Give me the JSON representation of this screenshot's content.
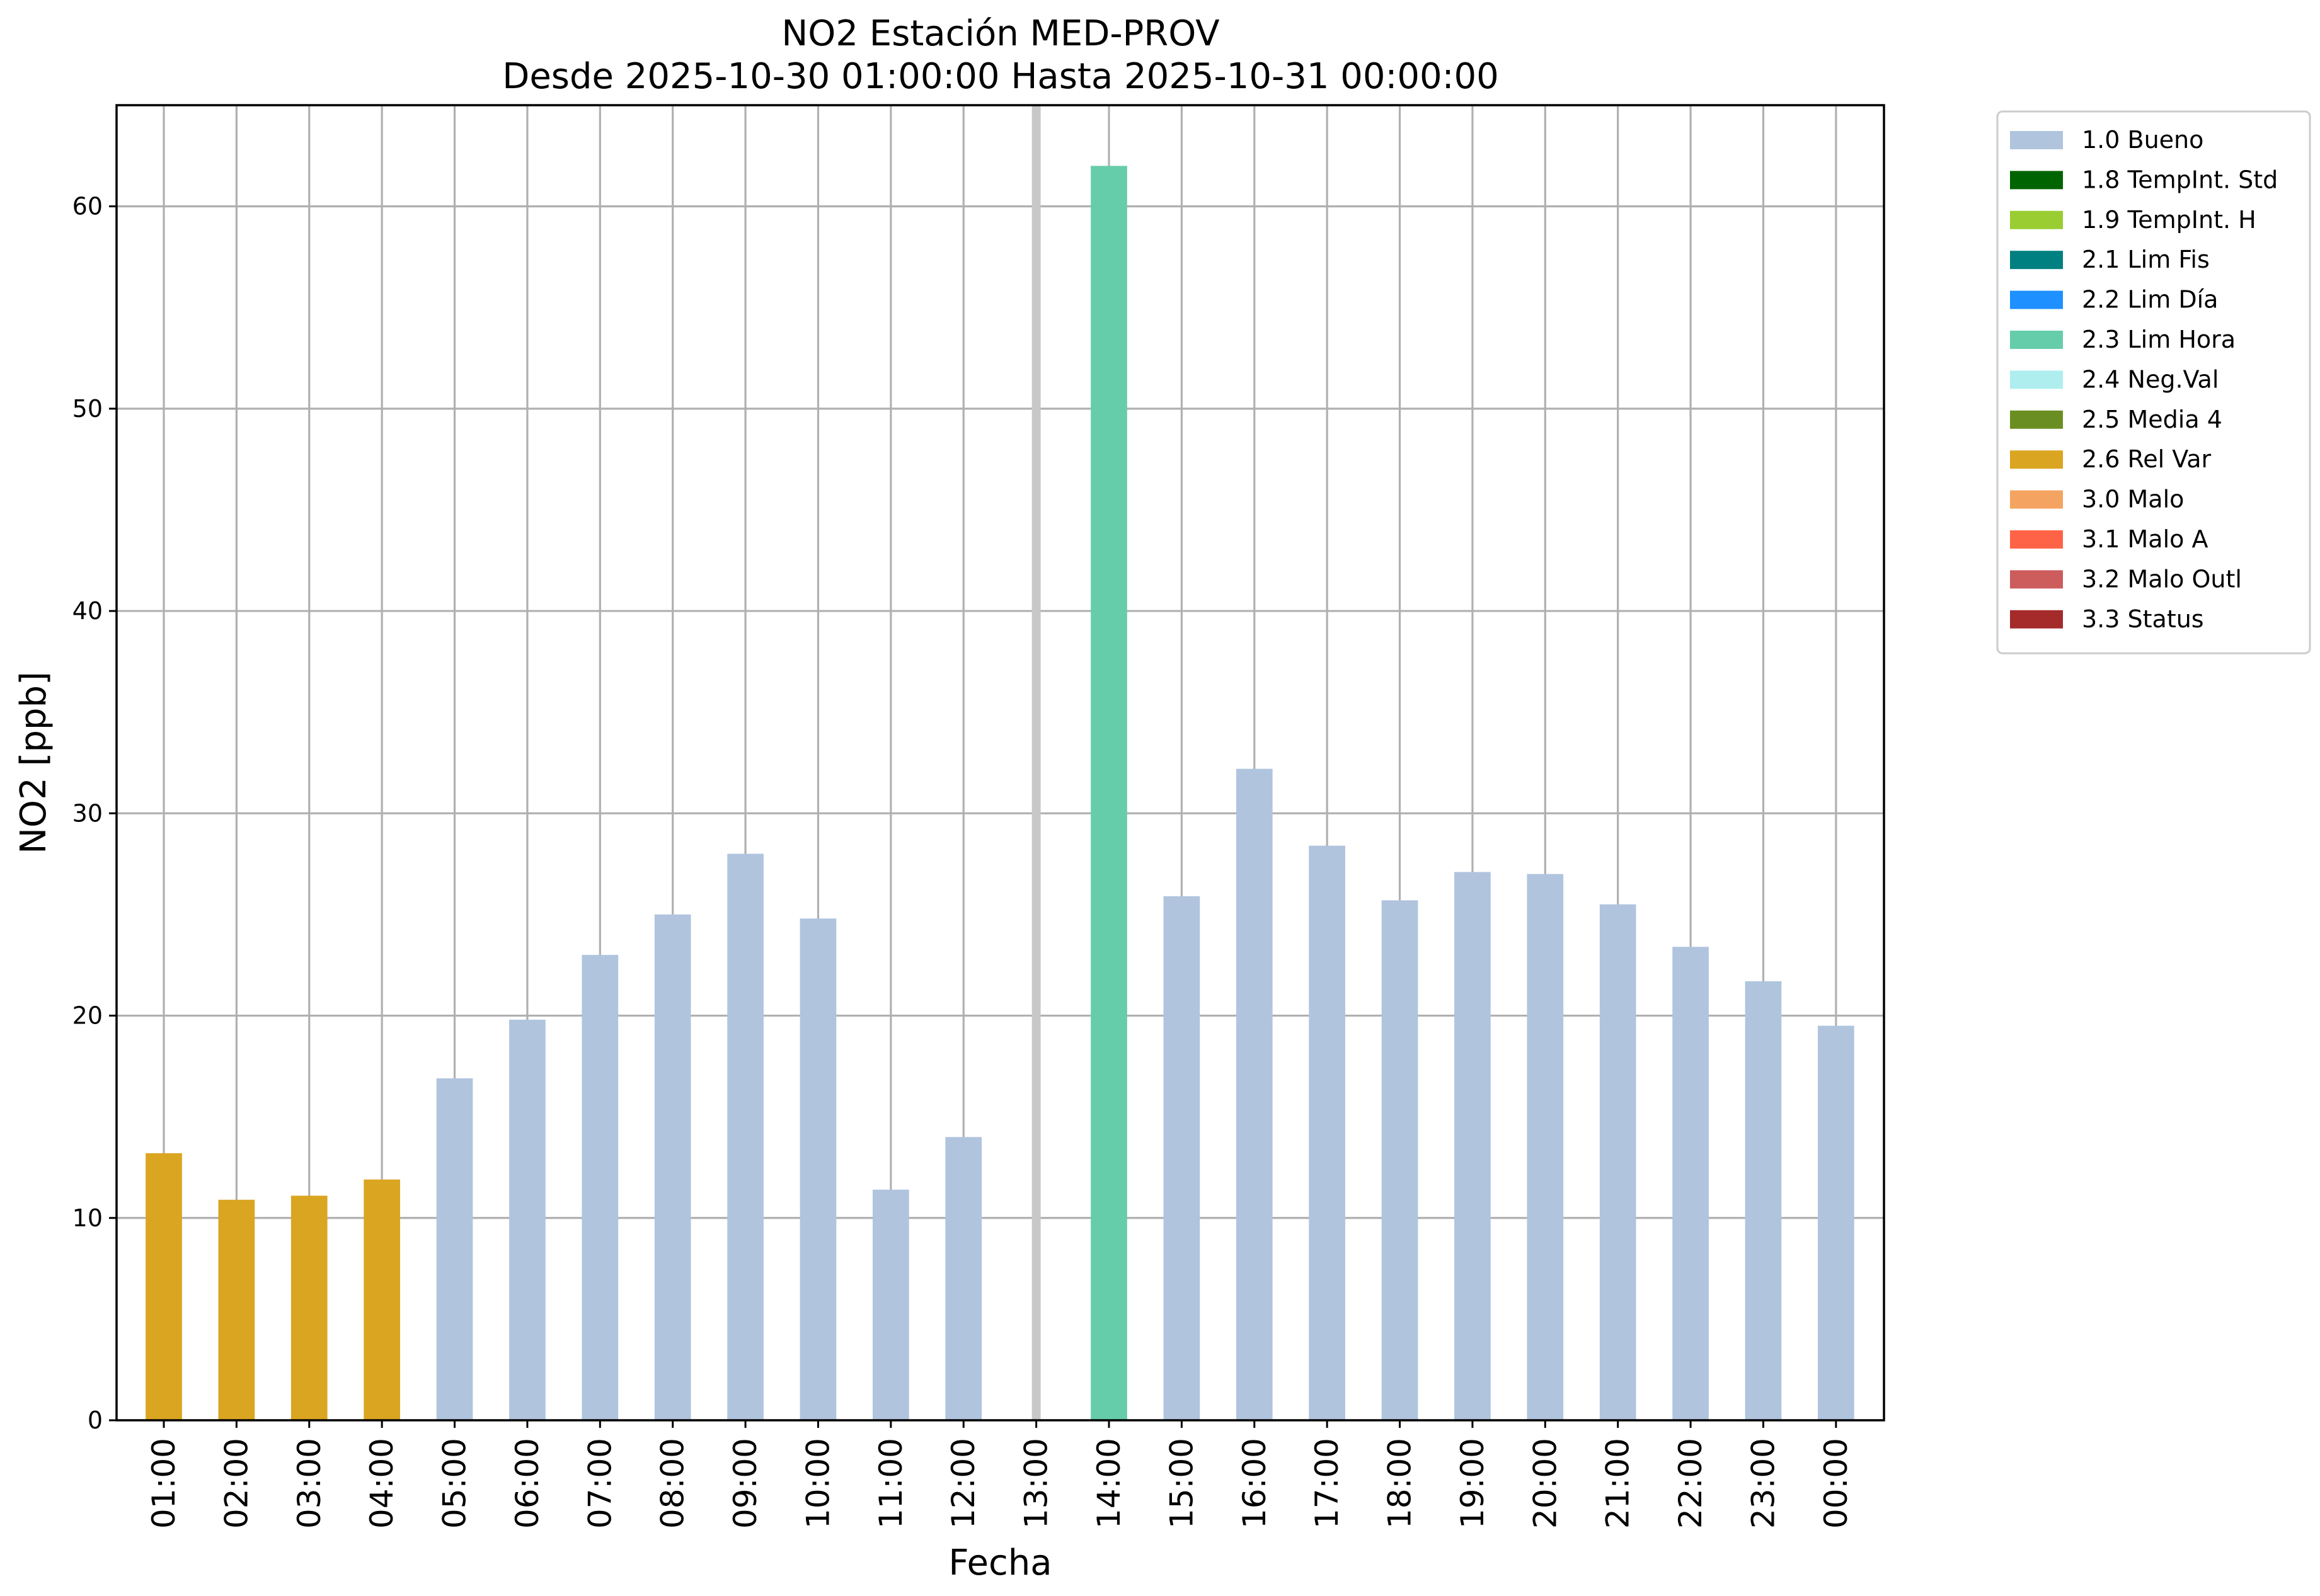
{
  "chart_data": {
    "type": "bar",
    "title": "NO2 Estación MED-PROV",
    "subtitle": "Desde 2025-10-30 01:00:00 Hasta 2025-10-31 00:00:00",
    "xlabel": "Fecha",
    "ylabel": "NO2 [ppb]",
    "ylim": [
      0,
      65
    ],
    "yticks": [
      0,
      10,
      20,
      30,
      40,
      50,
      60
    ],
    "grid": true,
    "legend_position": "outside-top-right",
    "categories": [
      "01:00",
      "02:00",
      "03:00",
      "04:00",
      "05:00",
      "06:00",
      "07:00",
      "08:00",
      "09:00",
      "10:00",
      "11:00",
      "12:00",
      "13:00",
      "14:00",
      "15:00",
      "16:00",
      "17:00",
      "18:00",
      "19:00",
      "20:00",
      "21:00",
      "22:00",
      "23:00",
      "00:00"
    ],
    "values": [
      13.2,
      10.9,
      11.1,
      11.9,
      16.9,
      19.8,
      23.0,
      25.0,
      28.0,
      24.8,
      11.4,
      14.0,
      null,
      62.0,
      25.9,
      32.2,
      28.4,
      25.7,
      27.1,
      27.0,
      25.5,
      23.4,
      21.7,
      19.5
    ],
    "flags": [
      "2.6 Rel Var",
      "2.6 Rel Var",
      "2.6 Rel Var",
      "2.6 Rel Var",
      "1.0 Bueno",
      "1.0 Bueno",
      "1.0 Bueno",
      "1.0 Bueno",
      "1.0 Bueno",
      "1.0 Bueno",
      "1.0 Bueno",
      "1.0 Bueno",
      null,
      "2.3 Lim Hora",
      "1.0 Bueno",
      "1.0 Bueno",
      "1.0 Bueno",
      "1.0 Bueno",
      "1.0 Bueno",
      "1.0 Bueno",
      "1.0 Bueno",
      "1.0 Bueno",
      "1.0 Bueno",
      "1.0 Bueno"
    ],
    "missing_marker_color": "#c8c8c8",
    "legend": [
      {
        "label": "1.0 Bueno",
        "color": "#b0c4de"
      },
      {
        "label": "1.8 TempInt. Std",
        "color": "#006400"
      },
      {
        "label": "1.9 TempInt. H",
        "color": "#9acd32"
      },
      {
        "label": "2.1 Lim Fis",
        "color": "#008080"
      },
      {
        "label": "2.2 Lim Día",
        "color": "#1e90ff"
      },
      {
        "label": "2.3 Lim Hora",
        "color": "#66cdaa"
      },
      {
        "label": "2.4 Neg.Val",
        "color": "#afeeee"
      },
      {
        "label": "2.5 Media 4",
        "color": "#6b8e23"
      },
      {
        "label": "2.6 Rel Var",
        "color": "#daa520"
      },
      {
        "label": "3.0 Malo",
        "color": "#f4a460"
      },
      {
        "label": "3.1 Malo A",
        "color": "#ff6347"
      },
      {
        "label": "3.2 Malo Outl",
        "color": "#cd5c5c"
      },
      {
        "label": "3.3 Status",
        "color": "#a52a2a"
      }
    ]
  }
}
